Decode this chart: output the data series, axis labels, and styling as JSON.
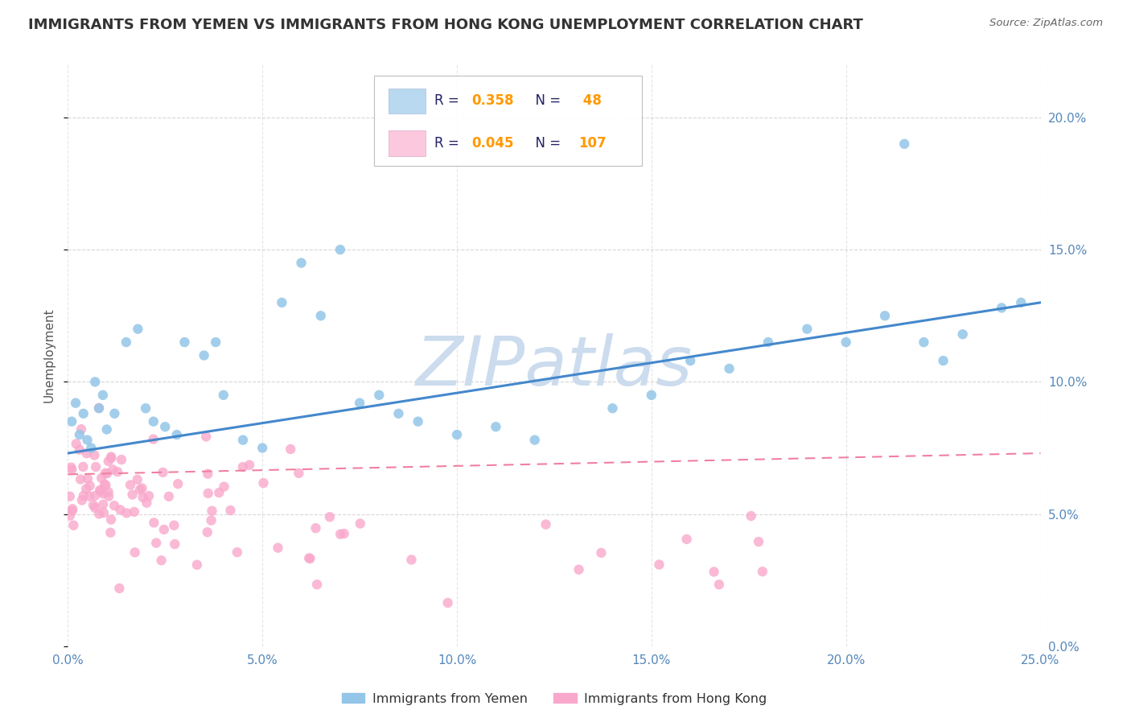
{
  "title": "IMMIGRANTS FROM YEMEN VS IMMIGRANTS FROM HONG KONG UNEMPLOYMENT CORRELATION CHART",
  "source": "Source: ZipAtlas.com",
  "ylabel": "Unemployment",
  "xlim": [
    0.0,
    0.25
  ],
  "ylim": [
    0.0,
    0.22
  ],
  "legend_entries": [
    {
      "label": "Immigrants from Yemen",
      "R": "0.358",
      "N": "48",
      "color": "#93c6e8",
      "box_color": "#b8d9f0"
    },
    {
      "label": "Immigrants from Hong Kong",
      "R": "0.045",
      "N": "107",
      "color": "#f9a8cb",
      "box_color": "#fcc8de"
    }
  ],
  "yemen_color": "#93c6e8",
  "hk_color": "#f9a8cb",
  "yemen_line_color": "#4488cc",
  "hk_line_color": "#f080a0",
  "background_color": "#ffffff",
  "grid_color": "#cccccc",
  "watermark_color": "#ccdcee",
  "title_fontsize": 13,
  "tick_color": "#5588bb",
  "tick_fontsize": 11
}
